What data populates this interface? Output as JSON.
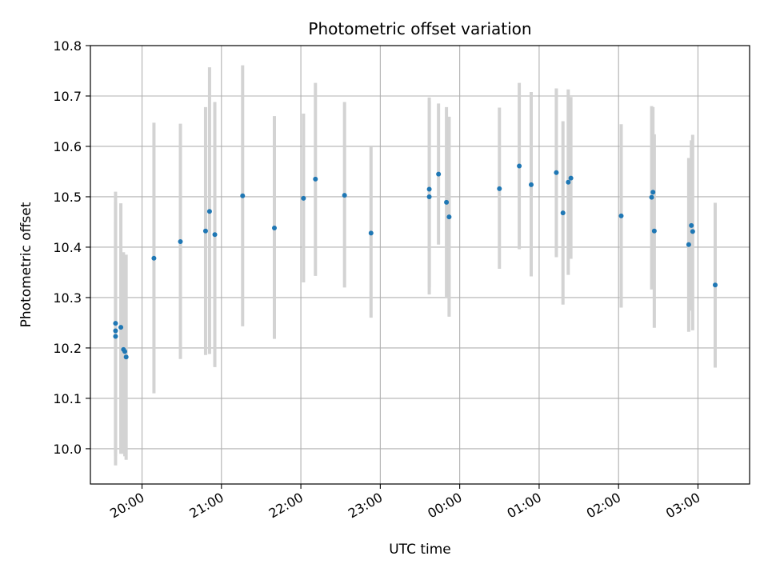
{
  "chart_data": {
    "type": "scatter",
    "title": "Photometric offset variation",
    "xlabel": "UTC time",
    "ylabel": "Photometric offset",
    "ylim": [
      9.93,
      10.8
    ],
    "xlim": [
      "19:21",
      "03:39"
    ],
    "x_ticks": [
      "20:00",
      "21:00",
      "22:00",
      "23:00",
      "00:00",
      "01:00",
      "02:00",
      "03:00"
    ],
    "y_ticks": [
      "10.0",
      "10.1",
      "10.2",
      "10.3",
      "10.4",
      "10.5",
      "10.6",
      "10.7",
      "10.8"
    ],
    "grid": true,
    "colors": {
      "point": "#1f77b4",
      "errorbar": "#d3d3d3",
      "grid": "#b0b0b0"
    },
    "series": [
      {
        "points": [
          {
            "t": "19:40",
            "y": 10.249,
            "lo": 9.985,
            "hi": 10.51
          },
          {
            "t": "19:40",
            "y": 10.234,
            "lo": 9.967,
            "hi": 10.49
          },
          {
            "t": "19:40",
            "y": 10.223,
            "lo": 9.99,
            "hi": 10.45
          },
          {
            "t": "19:44",
            "y": 10.241,
            "lo": 9.99,
            "hi": 10.487
          },
          {
            "t": "19:46",
            "y": 10.197,
            "lo": 9.99,
            "hi": 10.39
          },
          {
            "t": "19:47",
            "y": 10.193,
            "lo": 9.985,
            "hi": 10.36
          },
          {
            "t": "19:48",
            "y": 10.182,
            "lo": 9.978,
            "hi": 10.385
          },
          {
            "t": "20:09",
            "y": 10.378,
            "lo": 10.11,
            "hi": 10.647
          },
          {
            "t": "20:29",
            "y": 10.411,
            "lo": 10.178,
            "hi": 10.645
          },
          {
            "t": "20:48",
            "y": 10.432,
            "lo": 10.186,
            "hi": 10.678
          },
          {
            "t": "20:51",
            "y": 10.471,
            "lo": 10.188,
            "hi": 10.757
          },
          {
            "t": "20:55",
            "y": 10.425,
            "lo": 10.162,
            "hi": 10.688
          },
          {
            "t": "21:16",
            "y": 10.502,
            "lo": 10.243,
            "hi": 10.761
          },
          {
            "t": "21:40",
            "y": 10.438,
            "lo": 10.218,
            "hi": 10.66
          },
          {
            "t": "22:02",
            "y": 10.497,
            "lo": 10.33,
            "hi": 10.665
          },
          {
            "t": "22:11",
            "y": 10.535,
            "lo": 10.343,
            "hi": 10.726
          },
          {
            "t": "22:33",
            "y": 10.503,
            "lo": 10.32,
            "hi": 10.688
          },
          {
            "t": "22:53",
            "y": 10.428,
            "lo": 10.26,
            "hi": 10.6
          },
          {
            "t": "23:37",
            "y": 10.515,
            "lo": 10.32,
            "hi": 10.697
          },
          {
            "t": "23:37",
            "y": 10.5,
            "lo": 10.306,
            "hi": 10.69
          },
          {
            "t": "23:44",
            "y": 10.545,
            "lo": 10.405,
            "hi": 10.685
          },
          {
            "t": "23:50",
            "y": 10.489,
            "lo": 10.3,
            "hi": 10.678
          },
          {
            "t": "23:52",
            "y": 10.46,
            "lo": 10.262,
            "hi": 10.659
          },
          {
            "t": "00:30",
            "y": 10.516,
            "lo": 10.357,
            "hi": 10.677
          },
          {
            "t": "00:45",
            "y": 10.561,
            "lo": 10.396,
            "hi": 10.726
          },
          {
            "t": "00:54",
            "y": 10.524,
            "lo": 10.342,
            "hi": 10.708
          },
          {
            "t": "01:13",
            "y": 10.548,
            "lo": 10.38,
            "hi": 10.715
          },
          {
            "t": "01:18",
            "y": 10.468,
            "lo": 10.286,
            "hi": 10.65
          },
          {
            "t": "01:22",
            "y": 10.529,
            "lo": 10.345,
            "hi": 10.713
          },
          {
            "t": "01:24",
            "y": 10.537,
            "lo": 10.377,
            "hi": 10.698
          },
          {
            "t": "02:02",
            "y": 10.462,
            "lo": 10.28,
            "hi": 10.644
          },
          {
            "t": "02:25",
            "y": 10.499,
            "lo": 10.316,
            "hi": 10.68
          },
          {
            "t": "02:26",
            "y": 10.509,
            "lo": 10.338,
            "hi": 10.678
          },
          {
            "t": "02:27",
            "y": 10.432,
            "lo": 10.24,
            "hi": 10.624
          },
          {
            "t": "02:53",
            "y": 10.405,
            "lo": 10.232,
            "hi": 10.577
          },
          {
            "t": "02:55",
            "y": 10.443,
            "lo": 10.274,
            "hi": 10.612
          },
          {
            "t": "02:56",
            "y": 10.431,
            "lo": 10.235,
            "hi": 10.623
          },
          {
            "t": "03:13",
            "y": 10.325,
            "lo": 10.161,
            "hi": 10.488
          }
        ]
      }
    ]
  }
}
